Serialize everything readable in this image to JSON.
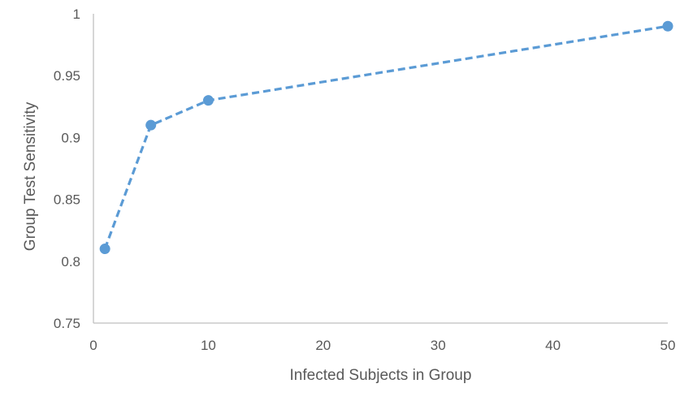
{
  "chart_data": {
    "type": "scatter",
    "title": "",
    "xlabel": "Infected Subjects in Group",
    "ylabel": "Group Test Sensitivity",
    "xlim": [
      0,
      50
    ],
    "ylim": [
      0.75,
      1
    ],
    "x_ticks": [
      0,
      10,
      20,
      30,
      40,
      50
    ],
    "y_ticks": [
      0.75,
      0.8,
      0.85,
      0.9,
      0.95,
      1
    ],
    "x_tick_labels": [
      "0",
      "10",
      "20",
      "30",
      "40",
      "50"
    ],
    "y_tick_labels": [
      "0.75",
      "0.8",
      "0.85",
      "0.9",
      "0.95",
      "1"
    ],
    "grid": false,
    "legend": "none",
    "series": [
      {
        "x": [
          1,
          5,
          10,
          50
        ],
        "y": [
          0.81,
          0.91,
          0.93,
          0.99
        ],
        "color": "#5b9bd5",
        "line_style": "dashed",
        "marker": "circle"
      }
    ]
  }
}
